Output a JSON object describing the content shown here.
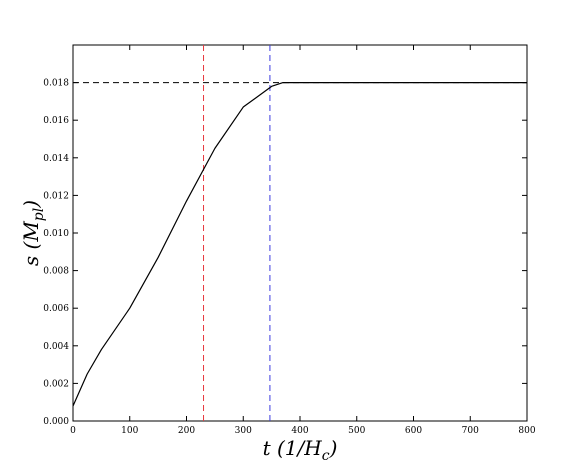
{
  "chart_data": {
    "type": "line",
    "xlabel": [
      "t (1/H",
      "c",
      ")"
    ],
    "ylabel": [
      "s (M",
      "pl",
      ")"
    ],
    "x": [
      0,
      25,
      50,
      100,
      150,
      200,
      250,
      300,
      350,
      370,
      400,
      500,
      600,
      700,
      800
    ],
    "series": [
      {
        "color": "#000000",
        "values": [
          0.0008,
          0.0025,
          0.0038,
          0.006,
          0.0087,
          0.0117,
          0.0145,
          0.0167,
          0.0178,
          0.018,
          0.018,
          0.018,
          0.018,
          0.018,
          0.018
        ]
      }
    ],
    "vlines": [
      {
        "x": 230,
        "color": "#e8383d"
      },
      {
        "x": 347,
        "color": "#3a3ae0"
      }
    ],
    "hlines": [
      {
        "y": 0.018,
        "color": "#000000"
      }
    ],
    "xlim": [
      0,
      800
    ],
    "ylim": [
      0,
      0.02
    ],
    "xticks": [
      0,
      100,
      200,
      300,
      400,
      500,
      600,
      700,
      800
    ],
    "yticks": [
      {
        "value": 0,
        "label": "0.000"
      },
      0.002,
      0.004,
      0.006,
      0.008,
      {
        "value": 0.01,
        "label": "0.010"
      },
      0.012,
      0.014,
      0.016,
      0.018
    ],
    "grid": false
  }
}
